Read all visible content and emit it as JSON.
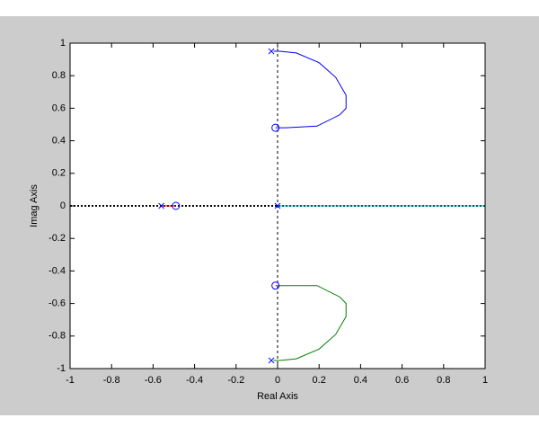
{
  "chart_data": {
    "type": "line",
    "xlabel": "Real Axis",
    "ylabel": "Imag Axis",
    "xlim": [
      -1,
      1
    ],
    "ylim": [
      -1,
      1
    ],
    "xticks": [
      -1,
      -0.8,
      -0.6,
      -0.4,
      -0.2,
      0,
      0.2,
      0.4,
      0.6,
      0.8,
      1
    ],
    "yticks": [
      -1,
      -0.8,
      -0.6,
      -0.4,
      -0.2,
      0,
      0.2,
      0.4,
      0.6,
      0.8,
      1
    ],
    "series": [
      {
        "color": "#0000ff",
        "marker": "none",
        "x": [
          -0.02,
          0.01,
          0.09,
          0.2,
          0.28,
          0.33,
          0.33,
          0.3,
          0.19,
          0.04,
          -0.01
        ],
        "y": [
          0.95,
          0.95,
          0.94,
          0.88,
          0.79,
          0.68,
          0.6,
          0.56,
          0.49,
          0.48,
          0.48
        ]
      },
      {
        "color": "#008000",
        "marker": "none",
        "x": [
          -0.02,
          0.01,
          0.09,
          0.2,
          0.28,
          0.33,
          0.33,
          0.3,
          0.19,
          0.04,
          -0.01
        ],
        "y": [
          -0.95,
          -0.95,
          -0.94,
          -0.88,
          -0.79,
          -0.68,
          -0.6,
          -0.56,
          -0.49,
          -0.49,
          -0.49
        ]
      },
      {
        "color": "#ff0000",
        "marker": "none",
        "x": [
          -0.56,
          -0.49
        ],
        "y": [
          0,
          0
        ]
      },
      {
        "color": "#00bfbf",
        "marker": "none",
        "x": [
          0,
          1
        ],
        "y": [
          0,
          0
        ]
      },
      {
        "color": "#0000ff",
        "marker": "x",
        "x": [
          -0.03,
          -0.03,
          -0.56,
          0
        ],
        "y": [
          0.95,
          -0.95,
          0,
          0
        ]
      },
      {
        "color": "#0000ff",
        "marker": "o",
        "x": [
          -0.01,
          -0.01,
          -0.49
        ],
        "y": [
          0.48,
          -0.49,
          0
        ]
      }
    ]
  }
}
